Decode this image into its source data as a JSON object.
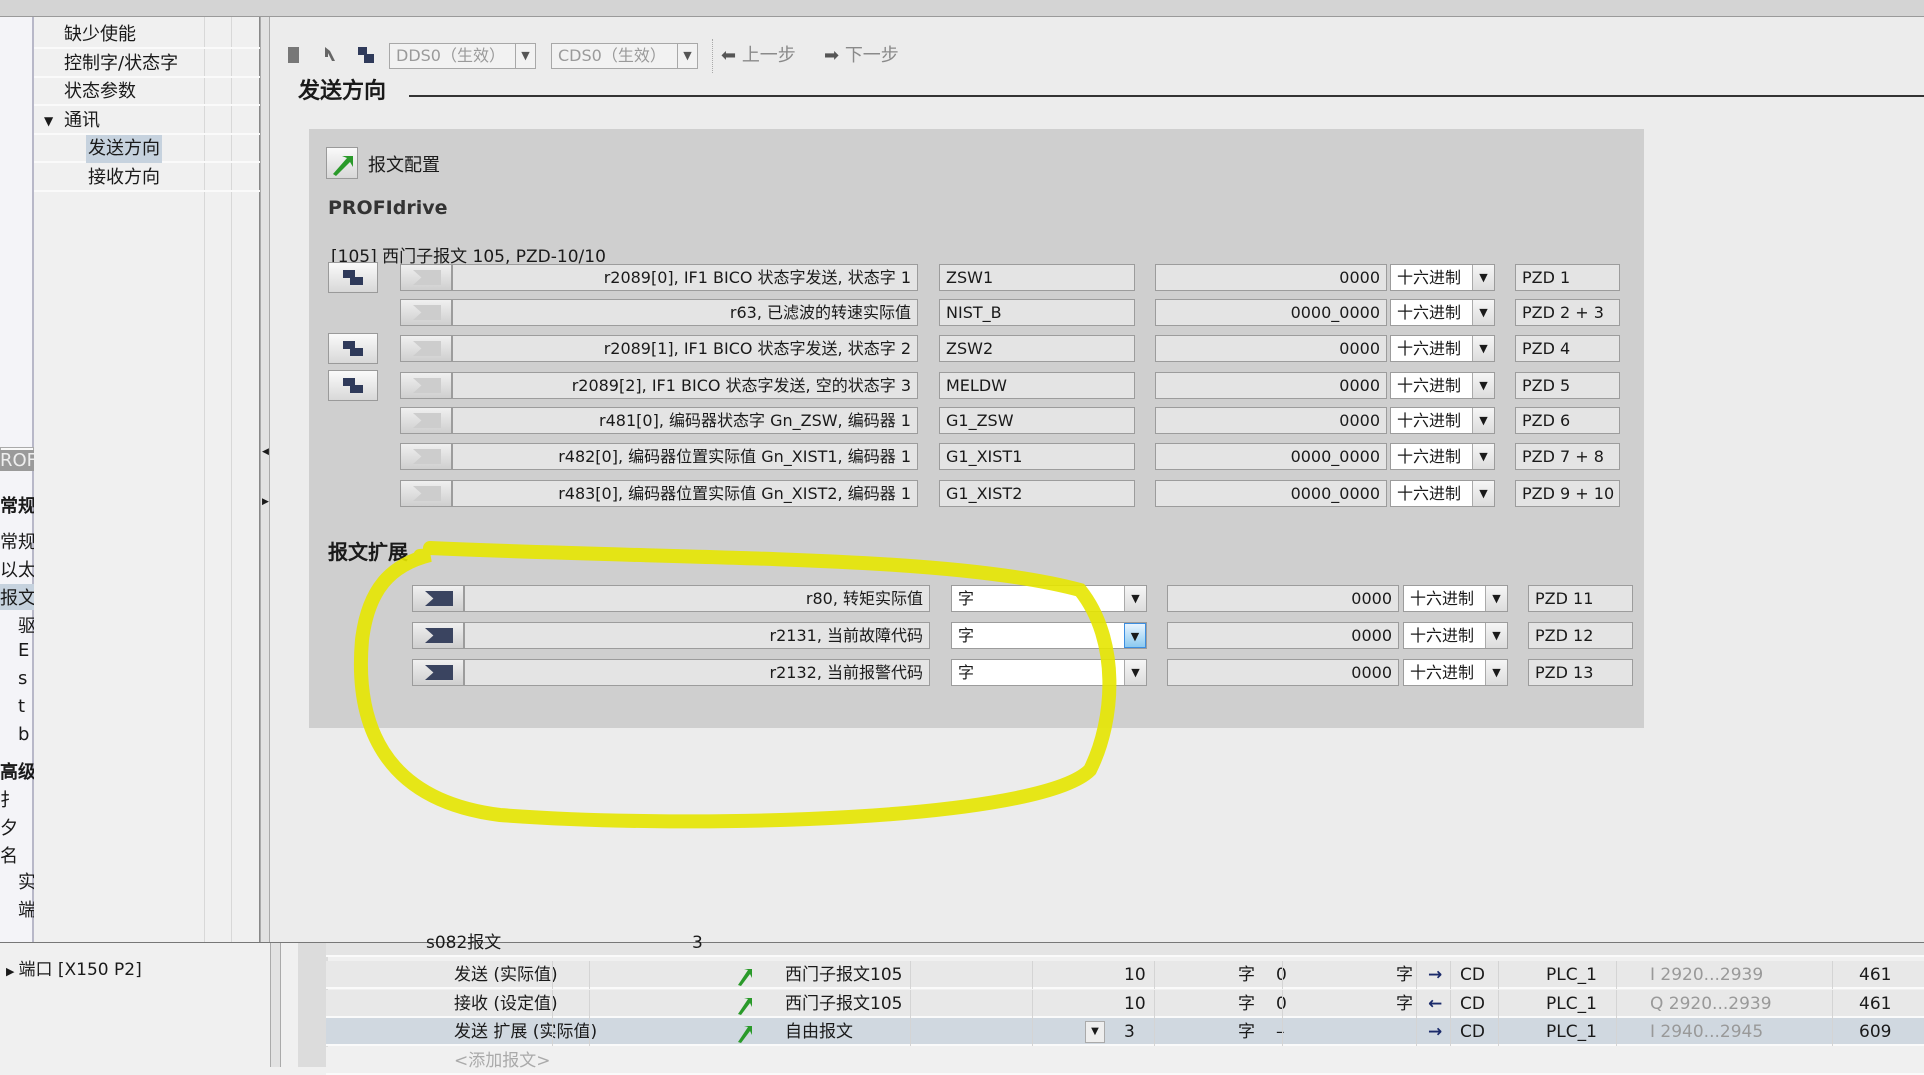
{
  "colors": {
    "accent_green": "#2a9a2a",
    "highlight_marker": "#e6e600",
    "connector_dark": "#3a4460",
    "selection": "#c6d2de"
  },
  "left_strip": [
    "ROF",
    "常规",
    "常规",
    "以太",
    "报文",
    "驱",
    "E",
    "s",
    "t",
    "b",
    "高级",
    "扌",
    "夕",
    "名",
    "实",
    "端"
  ],
  "nav": {
    "items": [
      {
        "label": "缺少使能",
        "indent": 1
      },
      {
        "label": "控制字/状态字",
        "indent": 1
      },
      {
        "label": "状态参数",
        "indent": 1
      },
      {
        "label": "通讯",
        "indent": 0,
        "expanded": true
      },
      {
        "label": "发送方向",
        "indent": 2,
        "selected": true
      },
      {
        "label": "接收方向",
        "indent": 2
      }
    ]
  },
  "toolbar": {
    "dds": "DDS0（生效）",
    "cds": "CDS0（生效）",
    "prev": "上一步",
    "next": "下一步",
    "icons": [
      "save-icon",
      "key-icon",
      "copy-icon"
    ]
  },
  "page_title": "发送方向",
  "telegram": {
    "config_button": "报文配置",
    "profile": "PROFIdrive",
    "telegram_name": "[105] 西门子报文 105, PZD-10/10",
    "rows": [
      {
        "has_link": true,
        "source": "r2089[0], IF1 BICO 状态字发送, 状态字 1",
        "signal": "ZSW1",
        "value": "0000",
        "format": "十六进制",
        "pzd": "PZD 1"
      },
      {
        "has_link": false,
        "source": "r63, 已滤波的转速实际值",
        "signal": "NIST_B",
        "value": "0000_0000",
        "format": "十六进制",
        "pzd": "PZD 2 + 3"
      },
      {
        "has_link": true,
        "source": "r2089[1], IF1 BICO 状态字发送, 状态字 2",
        "signal": "ZSW2",
        "value": "0000",
        "format": "十六进制",
        "pzd": "PZD 4"
      },
      {
        "has_link": true,
        "source": "r2089[2], IF1 BICO 状态字发送, 空的状态字 3",
        "signal": "MELDW",
        "value": "0000",
        "format": "十六进制",
        "pzd": "PZD 5"
      },
      {
        "has_link": false,
        "source": "r481[0], 编码器状态字 Gn_ZSW, 编码器 1",
        "signal": "G1_ZSW",
        "value": "0000",
        "format": "十六进制",
        "pzd": "PZD 6"
      },
      {
        "has_link": false,
        "source": "r482[0], 编码器位置实际值 Gn_XIST1, 编码器 1",
        "signal": "G1_XIST1",
        "value": "0000_0000",
        "format": "十六进制",
        "pzd": "PZD 7 + 8"
      },
      {
        "has_link": false,
        "source": "r483[0], 编码器位置实际值 Gn_XIST2, 编码器 1",
        "signal": "G1_XIST2",
        "value": "0000_0000",
        "format": "十六进制",
        "pzd": "PZD 9 + 10"
      }
    ]
  },
  "extension": {
    "heading": "报文扩展",
    "rows": [
      {
        "source": "r80, 转矩实际值",
        "type": "字",
        "value": "0000",
        "format": "十六进制",
        "pzd": "PZD 11"
      },
      {
        "source": "r2131, 当前故障代码",
        "type": "字",
        "value": "0000",
        "format": "十六进制",
        "pzd": "PZD 12",
        "active": true
      },
      {
        "source": "r2132, 当前报警代码",
        "type": "字",
        "value": "0000",
        "format": "十六进制",
        "pzd": "PZD 13"
      }
    ]
  },
  "bottom": {
    "port_item": "端口 [X150 P2]",
    "partial_row": "s082报文",
    "partial_count": "3",
    "rows": [
      {
        "name": "发送 (实际值)",
        "telegram": "西门子报文105",
        "length": "10",
        "unit": "字",
        "ext": "0",
        "ext_unit": "字",
        "dir": "→",
        "type": "CD",
        "plc": "PLC_1",
        "addr": "I 2920...2939",
        "hw": "461"
      },
      {
        "name": "接收 (设定值)",
        "telegram": "西门子报文105",
        "length": "10",
        "unit": "字",
        "ext": "0",
        "ext_unit": "字",
        "dir": "←",
        "type": "CD",
        "plc": "PLC_1",
        "addr": "Q 2920...2939",
        "hw": "461"
      },
      {
        "name": "发送 扩展 (实际值)",
        "telegram": "自由报文",
        "length": "3",
        "unit": "字",
        "ext": "–",
        "ext_unit": "",
        "dir": "→",
        "type": "CD",
        "plc": "PLC_1",
        "addr": "I 2940...2945",
        "hw": "609",
        "highlighted": true
      }
    ],
    "add_row": "<添加报文>"
  }
}
